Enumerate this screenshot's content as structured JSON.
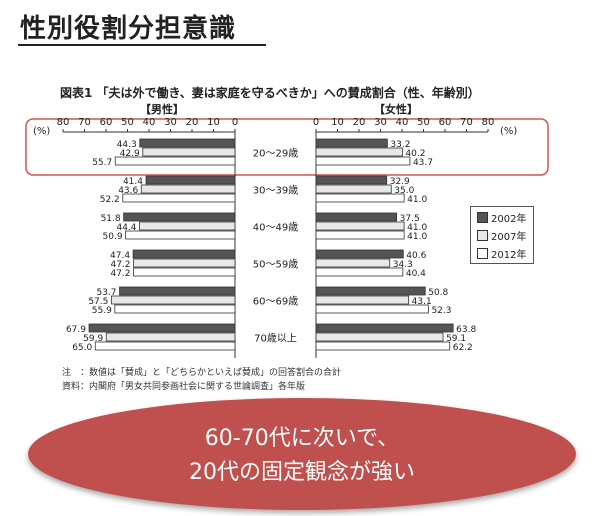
{
  "page": {
    "title": "性別役割分担意識"
  },
  "chart_data": {
    "type": "bar",
    "title": "図表1 「夫は外で働き、妻は家庭を守るべきか」への賛成割合（性、年齢別）",
    "panels": [
      {
        "name": "【男性】",
        "direction": "left"
      },
      {
        "name": "【女性】",
        "direction": "right"
      }
    ],
    "unit_label": "(%)",
    "xlim": [
      0,
      80
    ],
    "ticks": [
      80,
      70,
      60,
      50,
      40,
      30,
      20,
      10,
      0
    ],
    "ticks_right": [
      0,
      10,
      20,
      30,
      40,
      50,
      60,
      70,
      80
    ],
    "categories": [
      "20～29歳",
      "30～39歳",
      "40～49歳",
      "50～59歳",
      "60～69歳",
      "70歳以上"
    ],
    "series": [
      {
        "name": "2002年",
        "color": "#555555",
        "male": [
          44.3,
          41.4,
          51.8,
          47.4,
          53.7,
          67.9
        ],
        "female": [
          33.2,
          32.9,
          37.5,
          40.6,
          50.8,
          63.8
        ]
      },
      {
        "name": "2007年",
        "color": "#e8e8e8",
        "male": [
          42.9,
          43.6,
          44.4,
          47.2,
          57.5,
          59.9
        ],
        "female": [
          40.2,
          35.0,
          41.0,
          34.3,
          43.1,
          59.1
        ]
      },
      {
        "name": "2012年",
        "color": "#ffffff",
        "male": [
          55.7,
          52.2,
          50.9,
          47.2,
          55.9,
          65.0
        ],
        "female": [
          43.7,
          41.0,
          41.0,
          40.4,
          52.3,
          62.2
        ]
      }
    ],
    "data_labels": {
      "male": [
        [
          "44.3",
          "42.9",
          "55.7"
        ],
        [
          "41.4",
          "43.6",
          "52.2"
        ],
        [
          "51.8",
          "44.4",
          "50.9"
        ],
        [
          "47.4",
          "47.2",
          "47.2"
        ],
        [
          "53.7",
          "57.5",
          "55.9"
        ],
        [
          "67.9",
          "59.9",
          "65.0"
        ]
      ],
      "female": [
        [
          "33.2",
          "40.2",
          "43.7"
        ],
        [
          "32.9",
          "35.0",
          "41.0"
        ],
        [
          "37.5",
          "41.0",
          "41.0"
        ],
        [
          "40.6",
          "34.3",
          "40.4"
        ],
        [
          "50.8",
          "43.1",
          "52.3"
        ],
        [
          "63.8",
          "59.1",
          "62.2"
        ]
      ]
    },
    "highlight_category": "20～29歳",
    "legend": [
      "2002年",
      "2007年",
      "2012年"
    ],
    "notes": [
      "注　：数値は「賛成」と「どちらかといえば賛成」の回答割合の合計",
      "資料：内閣府「男女共同参画社会に関する世論調査」各年版"
    ]
  },
  "banner": {
    "line1": "60-70代に次いで、",
    "line2": "20代の固定観念が強い"
  },
  "colors": {
    "highlight": "#d9534f",
    "banner": "#c0504d"
  }
}
